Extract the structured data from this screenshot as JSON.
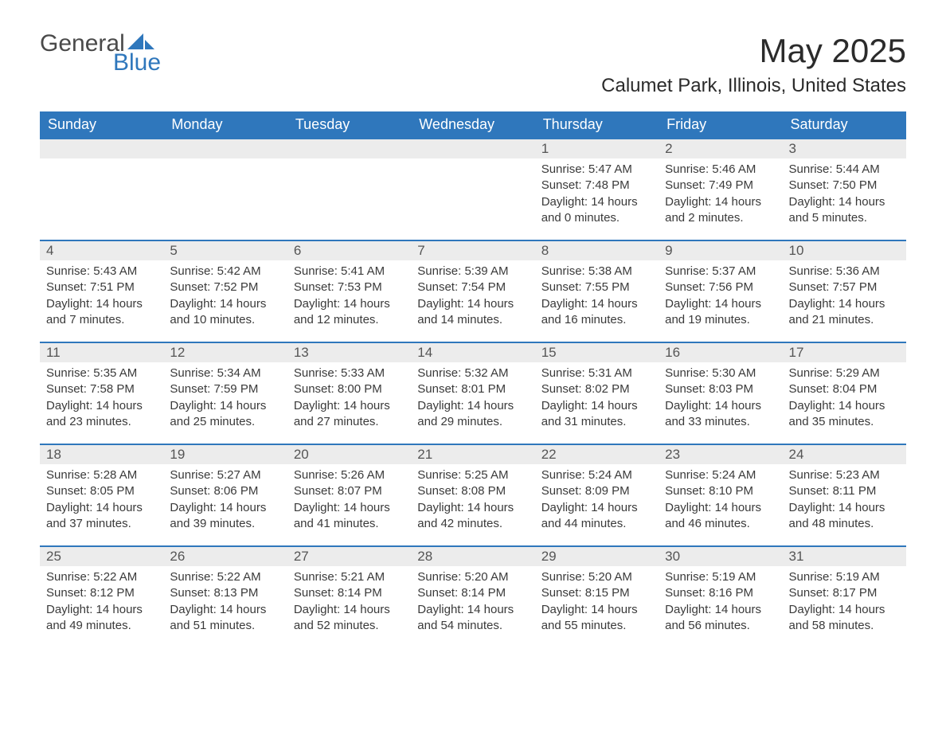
{
  "brand": {
    "line1": "General",
    "line2": "Blue",
    "logo_color": "#2f77bc",
    "text_color": "#4a4a4a"
  },
  "title": "May 2025",
  "location": "Calumet Park, Illinois, United States",
  "colors": {
    "header_bg": "#2f77bc",
    "header_text": "#ffffff",
    "daynum_bg": "#ececec",
    "rule": "#2f77bc",
    "body_text": "#3a3a3a"
  },
  "weekdays": [
    "Sunday",
    "Monday",
    "Tuesday",
    "Wednesday",
    "Thursday",
    "Friday",
    "Saturday"
  ],
  "weeks": [
    [
      null,
      null,
      null,
      null,
      {
        "n": "1",
        "sunrise": "Sunrise: 5:47 AM",
        "sunset": "Sunset: 7:48 PM",
        "daylight": "Daylight: 14 hours and 0 minutes."
      },
      {
        "n": "2",
        "sunrise": "Sunrise: 5:46 AM",
        "sunset": "Sunset: 7:49 PM",
        "daylight": "Daylight: 14 hours and 2 minutes."
      },
      {
        "n": "3",
        "sunrise": "Sunrise: 5:44 AM",
        "sunset": "Sunset: 7:50 PM",
        "daylight": "Daylight: 14 hours and 5 minutes."
      }
    ],
    [
      {
        "n": "4",
        "sunrise": "Sunrise: 5:43 AM",
        "sunset": "Sunset: 7:51 PM",
        "daylight": "Daylight: 14 hours and 7 minutes."
      },
      {
        "n": "5",
        "sunrise": "Sunrise: 5:42 AM",
        "sunset": "Sunset: 7:52 PM",
        "daylight": "Daylight: 14 hours and 10 minutes."
      },
      {
        "n": "6",
        "sunrise": "Sunrise: 5:41 AM",
        "sunset": "Sunset: 7:53 PM",
        "daylight": "Daylight: 14 hours and 12 minutes."
      },
      {
        "n": "7",
        "sunrise": "Sunrise: 5:39 AM",
        "sunset": "Sunset: 7:54 PM",
        "daylight": "Daylight: 14 hours and 14 minutes."
      },
      {
        "n": "8",
        "sunrise": "Sunrise: 5:38 AM",
        "sunset": "Sunset: 7:55 PM",
        "daylight": "Daylight: 14 hours and 16 minutes."
      },
      {
        "n": "9",
        "sunrise": "Sunrise: 5:37 AM",
        "sunset": "Sunset: 7:56 PM",
        "daylight": "Daylight: 14 hours and 19 minutes."
      },
      {
        "n": "10",
        "sunrise": "Sunrise: 5:36 AM",
        "sunset": "Sunset: 7:57 PM",
        "daylight": "Daylight: 14 hours and 21 minutes."
      }
    ],
    [
      {
        "n": "11",
        "sunrise": "Sunrise: 5:35 AM",
        "sunset": "Sunset: 7:58 PM",
        "daylight": "Daylight: 14 hours and 23 minutes."
      },
      {
        "n": "12",
        "sunrise": "Sunrise: 5:34 AM",
        "sunset": "Sunset: 7:59 PM",
        "daylight": "Daylight: 14 hours and 25 minutes."
      },
      {
        "n": "13",
        "sunrise": "Sunrise: 5:33 AM",
        "sunset": "Sunset: 8:00 PM",
        "daylight": "Daylight: 14 hours and 27 minutes."
      },
      {
        "n": "14",
        "sunrise": "Sunrise: 5:32 AM",
        "sunset": "Sunset: 8:01 PM",
        "daylight": "Daylight: 14 hours and 29 minutes."
      },
      {
        "n": "15",
        "sunrise": "Sunrise: 5:31 AM",
        "sunset": "Sunset: 8:02 PM",
        "daylight": "Daylight: 14 hours and 31 minutes."
      },
      {
        "n": "16",
        "sunrise": "Sunrise: 5:30 AM",
        "sunset": "Sunset: 8:03 PM",
        "daylight": "Daylight: 14 hours and 33 minutes."
      },
      {
        "n": "17",
        "sunrise": "Sunrise: 5:29 AM",
        "sunset": "Sunset: 8:04 PM",
        "daylight": "Daylight: 14 hours and 35 minutes."
      }
    ],
    [
      {
        "n": "18",
        "sunrise": "Sunrise: 5:28 AM",
        "sunset": "Sunset: 8:05 PM",
        "daylight": "Daylight: 14 hours and 37 minutes."
      },
      {
        "n": "19",
        "sunrise": "Sunrise: 5:27 AM",
        "sunset": "Sunset: 8:06 PM",
        "daylight": "Daylight: 14 hours and 39 minutes."
      },
      {
        "n": "20",
        "sunrise": "Sunrise: 5:26 AM",
        "sunset": "Sunset: 8:07 PM",
        "daylight": "Daylight: 14 hours and 41 minutes."
      },
      {
        "n": "21",
        "sunrise": "Sunrise: 5:25 AM",
        "sunset": "Sunset: 8:08 PM",
        "daylight": "Daylight: 14 hours and 42 minutes."
      },
      {
        "n": "22",
        "sunrise": "Sunrise: 5:24 AM",
        "sunset": "Sunset: 8:09 PM",
        "daylight": "Daylight: 14 hours and 44 minutes."
      },
      {
        "n": "23",
        "sunrise": "Sunrise: 5:24 AM",
        "sunset": "Sunset: 8:10 PM",
        "daylight": "Daylight: 14 hours and 46 minutes."
      },
      {
        "n": "24",
        "sunrise": "Sunrise: 5:23 AM",
        "sunset": "Sunset: 8:11 PM",
        "daylight": "Daylight: 14 hours and 48 minutes."
      }
    ],
    [
      {
        "n": "25",
        "sunrise": "Sunrise: 5:22 AM",
        "sunset": "Sunset: 8:12 PM",
        "daylight": "Daylight: 14 hours and 49 minutes."
      },
      {
        "n": "26",
        "sunrise": "Sunrise: 5:22 AM",
        "sunset": "Sunset: 8:13 PM",
        "daylight": "Daylight: 14 hours and 51 minutes."
      },
      {
        "n": "27",
        "sunrise": "Sunrise: 5:21 AM",
        "sunset": "Sunset: 8:14 PM",
        "daylight": "Daylight: 14 hours and 52 minutes."
      },
      {
        "n": "28",
        "sunrise": "Sunrise: 5:20 AM",
        "sunset": "Sunset: 8:14 PM",
        "daylight": "Daylight: 14 hours and 54 minutes."
      },
      {
        "n": "29",
        "sunrise": "Sunrise: 5:20 AM",
        "sunset": "Sunset: 8:15 PM",
        "daylight": "Daylight: 14 hours and 55 minutes."
      },
      {
        "n": "30",
        "sunrise": "Sunrise: 5:19 AM",
        "sunset": "Sunset: 8:16 PM",
        "daylight": "Daylight: 14 hours and 56 minutes."
      },
      {
        "n": "31",
        "sunrise": "Sunrise: 5:19 AM",
        "sunset": "Sunset: 8:17 PM",
        "daylight": "Daylight: 14 hours and 58 minutes."
      }
    ]
  ]
}
